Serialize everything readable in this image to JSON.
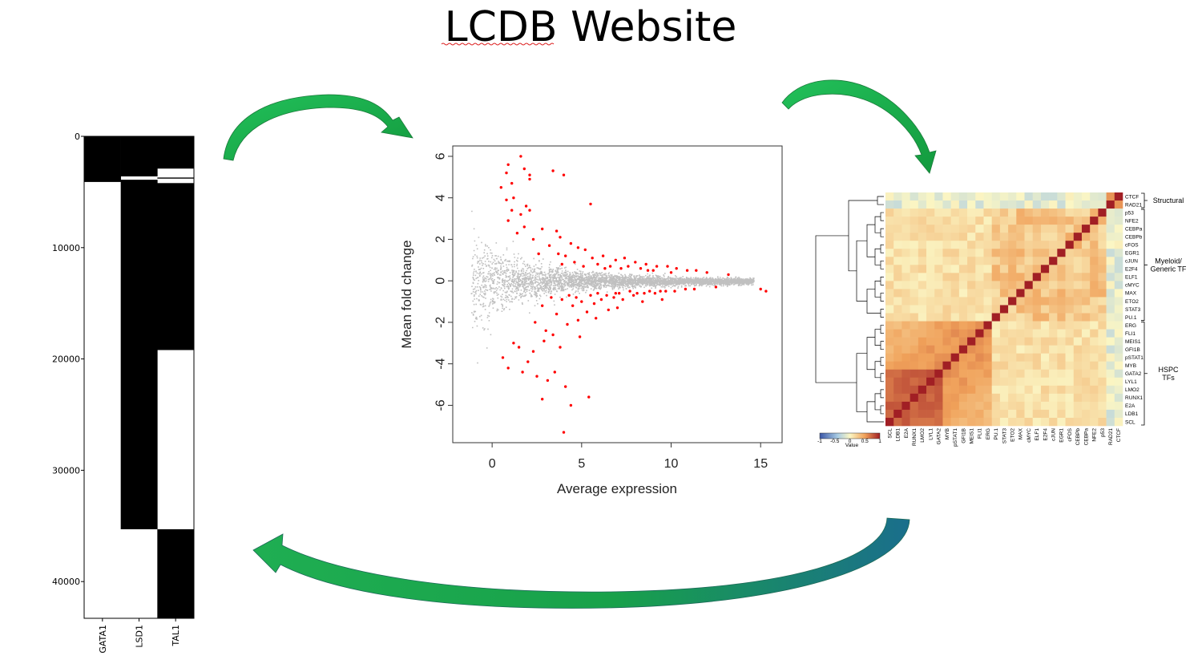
{
  "slide": {
    "title": "LCDB Website"
  },
  "colors": {
    "arrow_light": "#22c05a",
    "arrow_dark": "#1a6e8c",
    "ma_significant": "#ff0000",
    "ma_background": "#c0c0c0"
  },
  "chart_data": [
    {
      "type": "heatmap",
      "title": "",
      "columns": [
        "GATA1",
        "LSD1",
        "TAL1"
      ],
      "yticks": [
        "0",
        "10000",
        "20000",
        "30000",
        "40000"
      ],
      "ylim": [
        0,
        43300
      ],
      "y_inverted": true,
      "colors": {
        "present": "#000000",
        "absent": "#ffffff"
      },
      "segments": [
        {
          "column": "GATA1",
          "present": [
            [
              0,
              4100
            ]
          ]
        },
        {
          "column": "LSD1",
          "present": [
            [
              0,
              3600
            ],
            [
              3900,
              35300
            ]
          ]
        },
        {
          "column": "TAL1",
          "present": [
            [
              0,
              2900
            ],
            [
              3700,
              3800
            ],
            [
              4200,
              19200
            ],
            [
              35300,
              43300
            ]
          ]
        }
      ]
    },
    {
      "type": "scatter",
      "title": "",
      "xlabel": "Average expression",
      "ylabel": "Mean fold change",
      "xticks": [
        "0",
        "5",
        "10",
        "15"
      ],
      "yticks": [
        "-6",
        "-4",
        "-2",
        "0",
        "2",
        "4",
        "6"
      ],
      "xlim": [
        -2.2,
        16.2
      ],
      "ylim": [
        -7.8,
        6.5
      ],
      "series": [
        {
          "points": [
            [
              1.6,
              6.0
            ],
            [
              0.9,
              5.6
            ],
            [
              0.8,
              5.2
            ],
            [
              1.8,
              5.4
            ],
            [
              2.1,
              5.1
            ],
            [
              2.1,
              4.9
            ],
            [
              3.4,
              5.3
            ],
            [
              4.0,
              5.1
            ],
            [
              1.1,
              4.7
            ],
            [
              0.5,
              4.5
            ],
            [
              1.2,
              4.0
            ],
            [
              0.8,
              3.9
            ],
            [
              1.1,
              3.4
            ],
            [
              5.5,
              3.7
            ],
            [
              1.9,
              3.6
            ],
            [
              2.1,
              3.4
            ],
            [
              1.6,
              3.2
            ],
            [
              0.9,
              2.9
            ],
            [
              1.8,
              2.6
            ],
            [
              1.4,
              2.3
            ],
            [
              2.8,
              2.5
            ],
            [
              3.6,
              2.4
            ],
            [
              3.8,
              2.1
            ],
            [
              2.3,
              2.0
            ],
            [
              4.4,
              1.8
            ],
            [
              4.8,
              1.6
            ],
            [
              3.2,
              1.7
            ],
            [
              5.2,
              1.5
            ],
            [
              2.6,
              1.3
            ],
            [
              3.7,
              1.3
            ],
            [
              4.1,
              1.2
            ],
            [
              5.6,
              1.1
            ],
            [
              6.2,
              1.2
            ],
            [
              6.9,
              1.0
            ],
            [
              7.4,
              1.1
            ],
            [
              8.0,
              0.9
            ],
            [
              8.6,
              0.8
            ],
            [
              9.2,
              0.7
            ],
            [
              9.8,
              0.7
            ],
            [
              10.3,
              0.6
            ],
            [
              10.9,
              0.5
            ],
            [
              11.4,
              0.5
            ],
            [
              12.0,
              0.4
            ],
            [
              4.6,
              0.9
            ],
            [
              5.9,
              0.8
            ],
            [
              6.6,
              0.7
            ],
            [
              7.6,
              0.7
            ],
            [
              8.3,
              0.6
            ],
            [
              9.0,
              0.5
            ],
            [
              10.0,
              0.4
            ],
            [
              3.9,
              0.8
            ],
            [
              5.1,
              0.7
            ],
            [
              6.3,
              0.6
            ],
            [
              7.2,
              0.6
            ],
            [
              8.7,
              0.5
            ],
            [
              13.2,
              0.3
            ],
            [
              0.6,
              -3.7
            ],
            [
              1.2,
              -3.0
            ],
            [
              0.9,
              -4.2
            ],
            [
              1.7,
              -4.4
            ],
            [
              2.0,
              -3.9
            ],
            [
              2.3,
              -3.4
            ],
            [
              2.5,
              -4.6
            ],
            [
              2.8,
              -5.7
            ],
            [
              3.1,
              -4.8
            ],
            [
              3.5,
              -4.4
            ],
            [
              4.1,
              -5.1
            ],
            [
              4.4,
              -6.0
            ],
            [
              5.4,
              -5.6
            ],
            [
              4.0,
              -7.3
            ],
            [
              3.8,
              -3.2
            ],
            [
              3.0,
              -2.4
            ],
            [
              4.2,
              -2.1
            ],
            [
              4.8,
              -1.9
            ],
            [
              2.4,
              -2.0
            ],
            [
              3.6,
              -1.6
            ],
            [
              5.3,
              -1.5
            ],
            [
              2.8,
              -1.2
            ],
            [
              4.5,
              -1.2
            ],
            [
              3.9,
              -0.9
            ],
            [
              5.0,
              -1.0
            ],
            [
              5.7,
              -1.1
            ],
            [
              6.1,
              -0.9
            ],
            [
              6.8,
              -0.8
            ],
            [
              7.3,
              -0.9
            ],
            [
              7.9,
              -0.7
            ],
            [
              8.5,
              -0.6
            ],
            [
              9.1,
              -0.6
            ],
            [
              9.7,
              -0.5
            ],
            [
              10.2,
              -0.5
            ],
            [
              10.8,
              -0.4
            ],
            [
              11.3,
              -0.4
            ],
            [
              12.5,
              -0.3
            ],
            [
              15.0,
              -0.4
            ],
            [
              15.3,
              -0.5
            ],
            [
              4.7,
              -0.8
            ],
            [
              5.5,
              -0.7
            ],
            [
              6.4,
              -0.7
            ],
            [
              7.1,
              -0.6
            ],
            [
              8.1,
              -0.6
            ],
            [
              8.8,
              -0.5
            ],
            [
              9.4,
              -0.5
            ],
            [
              3.3,
              -0.8
            ],
            [
              4.3,
              -0.7
            ],
            [
              5.9,
              -0.6
            ],
            [
              6.9,
              -0.6
            ],
            [
              7.7,
              -0.5
            ],
            [
              2.9,
              -2.9
            ],
            [
              3.4,
              -2.6
            ],
            [
              1.5,
              -3.2
            ],
            [
              4.9,
              -2.7
            ],
            [
              5.8,
              -1.8
            ],
            [
              6.5,
              -1.4
            ],
            [
              7.0,
              -1.3
            ],
            [
              8.4,
              -1.0
            ],
            [
              9.5,
              -0.9
            ]
          ],
          "name": "",
          "color": "#ff0000"
        }
      ],
      "background_points": "dense grey cloud centred near 0, fanning out at low expression and tightening by ~15"
    },
    {
      "type": "heatmap",
      "title": "",
      "rows": [
        "CTCF",
        "RAD21",
        "p53",
        "NFE2",
        "CEBPa",
        "CEBPb",
        "cFOS",
        "EGR1",
        "cJUN",
        "E2F4",
        "ELF1",
        "cMYC",
        "MAX",
        "ETO2",
        "STAT3",
        "PU.1",
        "ERG",
        "FLI1",
        "MEIS1",
        "GFI1B",
        "pSTAT1",
        "MYB",
        "GATA2",
        "LYL1",
        "LMO2",
        "RUNX1",
        "E2A",
        "LDB1",
        "SCL"
      ],
      "columns": [
        "SCL",
        "LDB1",
        "E2A",
        "RUNX1",
        "LMO2",
        "LYL1",
        "GATA2",
        "MYB",
        "pSTAT1",
        "GFI1B",
        "MEIS1",
        "FLI1",
        "ERG",
        "PU.1",
        "STAT3",
        "ETO2",
        "MAX",
        "cMYC",
        "ELF1",
        "E2F4",
        "cJUN",
        "EGR1",
        "cFOS",
        "CEBPb",
        "CEBPa",
        "NFE2",
        "p53",
        "RAD21",
        "CTCF"
      ],
      "groups": [
        {
          "label": "Structural",
          "rows": [
            "CTCF",
            "RAD21"
          ]
        },
        {
          "label": "Myeloid/ Generic TF",
          "rows": [
            "p53",
            "NFE2",
            "CEBPa",
            "CEBPb",
            "cFOS",
            "EGR1",
            "cJUN",
            "E2F4",
            "ELF1",
            "cMYC",
            "MAX",
            "ETO2",
            "STAT3",
            "PU.1"
          ]
        },
        {
          "label": "HSPC TFs",
          "rows": [
            "ERG",
            "FLI1",
            "MEIS1",
            "GFI1B",
            "pSTAT1",
            "MYB",
            "GATA2",
            "LYL1",
            "LMO2",
            "RUNX1",
            "E2A",
            "LDB1",
            "SCL"
          ]
        }
      ],
      "colorbar": {
        "ticks": [
          "-1",
          "-0.5",
          "0",
          "0.5",
          "1"
        ],
        "label": "Value",
        "range": [
          -1,
          1
        ]
      },
      "diagonal_value": 1
    }
  ]
}
